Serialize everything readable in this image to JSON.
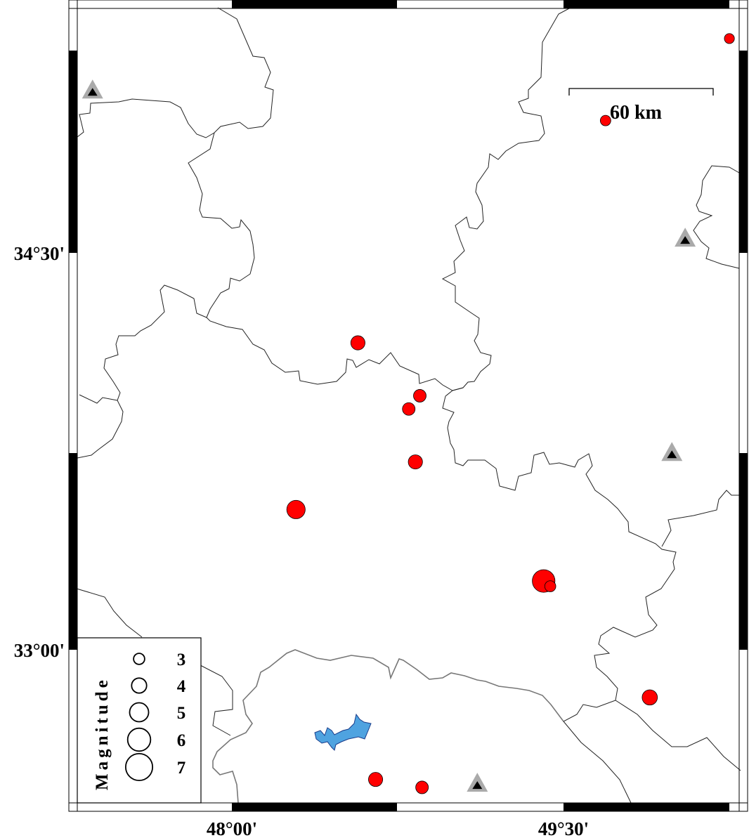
{
  "axes": {
    "lat_labels": [
      "34°30'",
      "33°00'"
    ],
    "lon_labels": [
      "48°00'",
      "49°30'"
    ]
  },
  "scale_bar": {
    "label": "60 km"
  },
  "legend": {
    "title": "Magnitude",
    "magnitudes": [
      "3",
      "4",
      "5",
      "6",
      "7"
    ]
  },
  "colors": {
    "event": "#ff0000",
    "station_outer": "#aaaaaa",
    "station_inner": "#000000",
    "lake": "#4fa3e0"
  },
  "map_data": {
    "type": "scatter",
    "projection_ticks": {
      "lon": [
        48.0,
        49.5
      ],
      "lat": [
        34.5,
        33.0
      ]
    },
    "extent": {
      "lon": [
        47.3,
        50.3
      ],
      "lat": [
        32.42,
        35.42
      ]
    },
    "events": [
      {
        "lon": 50.25,
        "lat": 35.31,
        "mag": 2.1
      },
      {
        "lon": 49.69,
        "lat": 35.0,
        "mag": 2.2
      },
      {
        "lon": 48.57,
        "lat": 34.16,
        "mag": 2.9
      },
      {
        "lon": 48.85,
        "lat": 33.96,
        "mag": 2.6
      },
      {
        "lon": 48.8,
        "lat": 33.91,
        "mag": 2.6
      },
      {
        "lon": 48.83,
        "lat": 33.71,
        "mag": 2.9
      },
      {
        "lon": 48.29,
        "lat": 33.53,
        "mag": 3.7
      },
      {
        "lon": 49.41,
        "lat": 33.26,
        "mag": 4.5
      },
      {
        "lon": 49.44,
        "lat": 33.24,
        "mag": 2.3
      },
      {
        "lon": 49.89,
        "lat": 32.82,
        "mag": 3.1
      },
      {
        "lon": 48.65,
        "lat": 32.51,
        "mag": 2.9
      },
      {
        "lon": 48.86,
        "lat": 32.48,
        "mag": 2.6
      }
    ],
    "stations": [
      {
        "lon": 47.37,
        "lat": 35.11
      },
      {
        "lon": 50.05,
        "lat": 34.55
      },
      {
        "lon": 49.99,
        "lat": 33.74
      },
      {
        "lon": 49.11,
        "lat": 32.49
      }
    ]
  }
}
